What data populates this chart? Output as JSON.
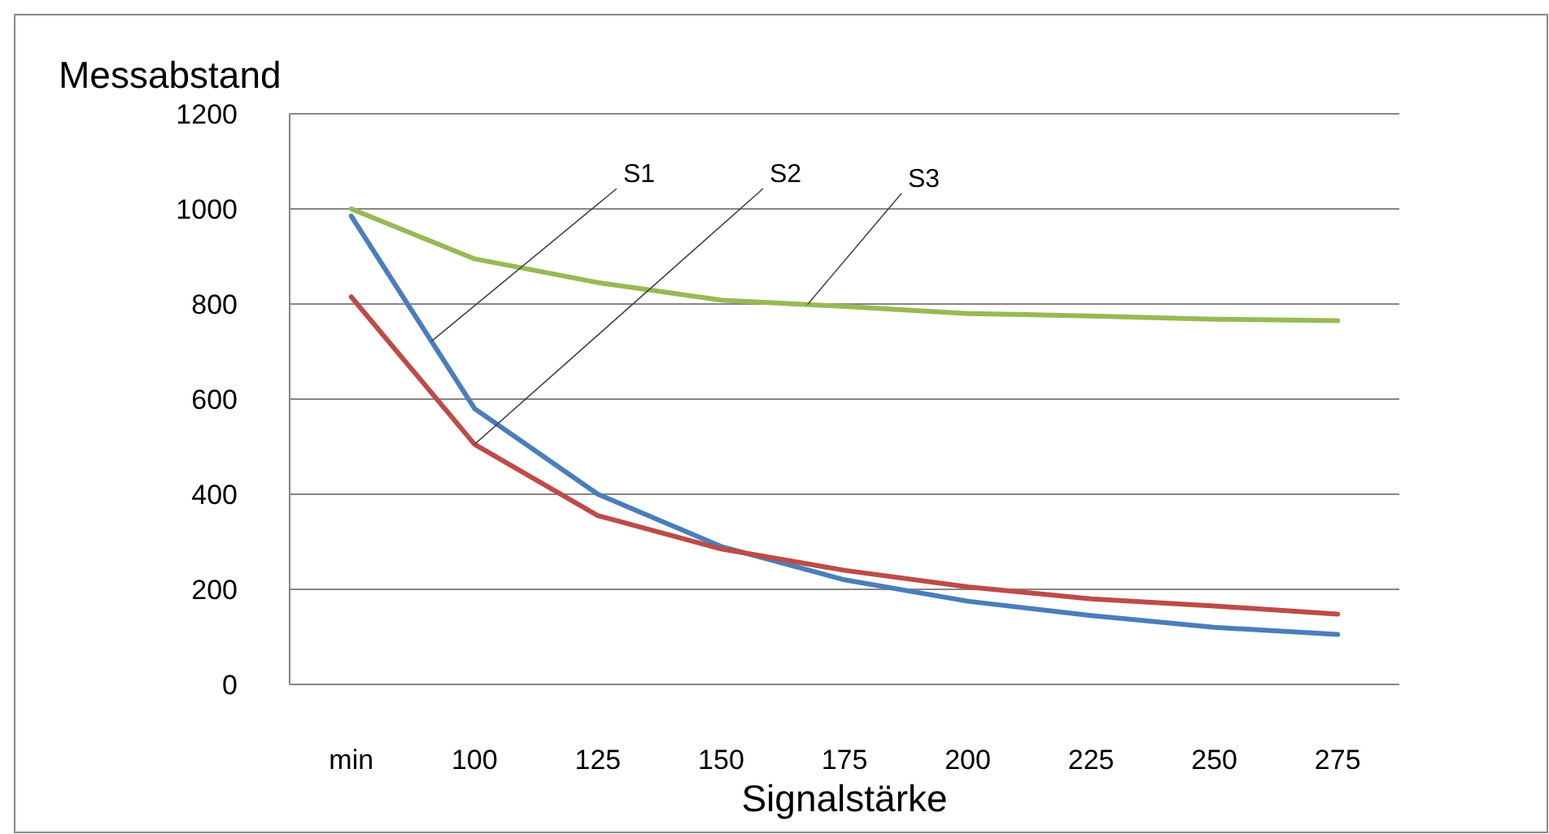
{
  "chart_data": {
    "type": "line",
    "xlabel": "Signalstärke",
    "ylabel": "Messabstand",
    "categories": [
      "min",
      "100",
      "125",
      "150",
      "175",
      "200",
      "225",
      "250",
      "275"
    ],
    "series": [
      {
        "name": "S1",
        "color": "#4a7ebb",
        "values": [
          985,
          580,
          400,
          290,
          220,
          175,
          145,
          120,
          105
        ]
      },
      {
        "name": "S2",
        "color": "#be4b48",
        "values": [
          815,
          505,
          355,
          285,
          240,
          205,
          180,
          165,
          148
        ]
      },
      {
        "name": "S3",
        "color": "#98b954",
        "values": [
          1000,
          895,
          845,
          808,
          795,
          780,
          775,
          768,
          765
        ]
      }
    ],
    "ylim": [
      0,
      1200
    ],
    "yticks": [
      0,
      200,
      400,
      600,
      800,
      1000,
      1200
    ],
    "grid": "y",
    "legend": false,
    "marker": "none",
    "line_style": "solid"
  }
}
